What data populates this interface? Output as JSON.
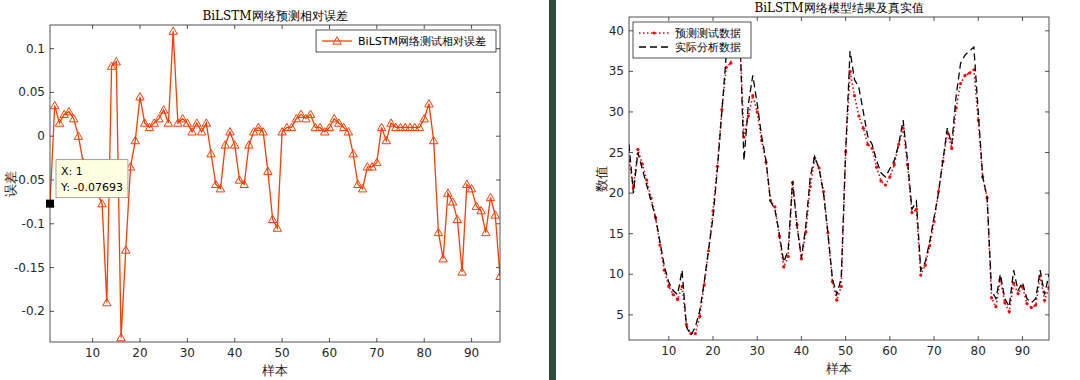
{
  "chart_data": [
    {
      "type": "line",
      "title": "BiLSTM网络预测相对误差",
      "x_label": "样本",
      "y_label": "误差",
      "x": [
        1,
        2,
        3,
        4,
        5,
        6,
        7,
        8,
        9,
        10,
        11,
        12,
        13,
        14,
        15,
        16,
        17,
        18,
        19,
        20,
        21,
        22,
        23,
        24,
        25,
        26,
        27,
        28,
        29,
        30,
        31,
        32,
        33,
        34,
        35,
        36,
        37,
        38,
        39,
        40,
        41,
        42,
        43,
        44,
        45,
        46,
        47,
        48,
        49,
        50,
        51,
        52,
        53,
        54,
        55,
        56,
        57,
        58,
        59,
        60,
        61,
        62,
        63,
        64,
        65,
        66,
        67,
        68,
        69,
        70,
        71,
        72,
        73,
        74,
        75,
        76,
        77,
        78,
        79,
        80,
        81,
        82,
        83,
        84,
        85,
        86,
        87,
        88,
        89,
        90,
        91,
        92,
        93,
        94,
        95,
        96
      ],
      "series": [
        {
          "name": "BiLSTM网络测试相对误差",
          "color": "#ff3c00",
          "marker": "triangle",
          "line_style": "solid",
          "values": [
            -0.077,
            0.035,
            0.015,
            0.025,
            0.028,
            0.02,
            0.0,
            -0.03,
            -0.05,
            -0.06,
            -0.065,
            -0.077,
            -0.19,
            0.08,
            0.085,
            -0.23,
            -0.13,
            -0.035,
            -0.005,
            0.045,
            0.015,
            0.01,
            0.015,
            0.02,
            0.03,
            0.015,
            0.12,
            0.015,
            0.02,
            0.015,
            0.005,
            0.015,
            0.005,
            0.015,
            -0.02,
            -0.055,
            -0.06,
            -0.01,
            0.005,
            -0.01,
            -0.05,
            -0.055,
            -0.01,
            0.005,
            0.01,
            0.005,
            -0.04,
            -0.095,
            -0.105,
            0.005,
            0.01,
            0.01,
            0.02,
            0.025,
            0.02,
            0.025,
            0.01,
            0.01,
            0.005,
            0.01,
            0.02,
            0.015,
            0.01,
            0.005,
            -0.02,
            -0.055,
            -0.06,
            -0.035,
            -0.035,
            -0.03,
            0.01,
            -0.005,
            0.015,
            0.01,
            0.01,
            0.01,
            0.01,
            0.01,
            0.01,
            0.02,
            0.037,
            -0.005,
            -0.11,
            -0.14,
            -0.065,
            -0.075,
            -0.095,
            -0.155,
            -0.055,
            -0.06,
            -0.08,
            -0.085,
            -0.11,
            -0.07,
            -0.09,
            -0.16
          ]
        }
      ],
      "xlim": [
        1,
        96
      ],
      "xticks": [
        10,
        20,
        30,
        40,
        50,
        60,
        70,
        80,
        90
      ],
      "ylim": [
        -0.235,
        0.127
      ],
      "yticks": [
        -0.2,
        -0.15,
        -0.1,
        -0.05,
        0,
        0.05,
        0.1
      ],
      "legend": "upper right",
      "annotations": [
        "X: 1",
        "Y: -0.07693"
      ]
    },
    {
      "type": "line",
      "title": "BiLSTM网络模型结果及真实值",
      "x_label": "样本",
      "y_label": "数值",
      "x": [
        1,
        2,
        3,
        4,
        5,
        6,
        7,
        8,
        9,
        10,
        11,
        12,
        13,
        14,
        15,
        16,
        17,
        18,
        19,
        20,
        21,
        22,
        23,
        24,
        25,
        26,
        27,
        28,
        29,
        30,
        31,
        32,
        33,
        34,
        35,
        36,
        37,
        38,
        39,
        40,
        41,
        42,
        43,
        44,
        45,
        46,
        47,
        48,
        49,
        50,
        51,
        52,
        53,
        54,
        55,
        56,
        57,
        58,
        59,
        60,
        61,
        62,
        63,
        64,
        65,
        66,
        67,
        68,
        69,
        70,
        71,
        72,
        73,
        74,
        75,
        76,
        77,
        78,
        79,
        80,
        81,
        82,
        83,
        84,
        85,
        86,
        87,
        88,
        89,
        90,
        91,
        92,
        93,
        94,
        95,
        96
      ],
      "series": [
        {
          "name": "预测测试数据",
          "color": "#ff0000",
          "marker": "point",
          "line_style": "dotted",
          "values": [
            24.0,
            20.7,
            25.4,
            23.6,
            21.6,
            19.4,
            17.0,
            13.6,
            10.5,
            8.5,
            7.5,
            6.9,
            8.5,
            3.8,
            2.7,
            2.7,
            4.8,
            8.7,
            12.9,
            17.8,
            23.3,
            30.3,
            35.5,
            36.0,
            40.5,
            40.2,
            26.9,
            29.5,
            32.0,
            30.0,
            26.5,
            23.8,
            19.1,
            18.3,
            14.7,
            10.9,
            12.2,
            21.3,
            16.1,
            11.9,
            15.2,
            20.8,
            24.3,
            23.1,
            20.2,
            15.1,
            9.1,
            6.8,
            8.5,
            25.1,
            35.0,
            32.0,
            29.5,
            28.0,
            26.0,
            25.5,
            23.2,
            21.5,
            21.0,
            22.0,
            23.5,
            26.0,
            28.0,
            23.5,
            17.6,
            18.0,
            9.9,
            11.1,
            13.5,
            16.5,
            20.2,
            23.9,
            27.5,
            25.5,
            30.5,
            33.5,
            34.5,
            34.8,
            35.2,
            29.0,
            22.0,
            19.4,
            7.1,
            6.0,
            9.4,
            6.5,
            5.4,
            8.9,
            7.6,
            8.5,
            6.4,
            5.9,
            6.2,
            9.8,
            6.8,
            8.4
          ]
        },
        {
          "name": "实际分析数据",
          "color": "#000000",
          "marker": "none",
          "line_style": "dashed",
          "values": [
            26,
            20,
            25,
            23,
            21,
            19,
            17,
            14,
            11,
            9,
            8,
            7.5,
            10.5,
            3.5,
            2.5,
            3.5,
            5.5,
            9,
            13,
            17,
            23,
            30,
            37,
            38,
            41,
            41,
            24,
            31,
            34.5,
            31,
            27,
            24,
            19,
            18,
            15,
            11.5,
            13,
            21.5,
            16,
            12,
            16,
            22,
            24.5,
            23,
            20,
            15,
            9.5,
            7.5,
            9.5,
            25,
            37.5,
            34,
            33,
            30,
            27,
            26,
            24,
            22.5,
            22,
            23,
            24,
            26,
            29,
            24,
            18,
            19,
            10.5,
            11.5,
            14,
            17,
            20,
            24,
            28,
            26,
            32,
            36,
            37,
            37.5,
            38,
            30,
            22,
            19.5,
            8,
            7,
            10,
            7,
            6,
            10.5,
            8,
            9,
            7,
            6.5,
            7,
            10.5,
            7.5,
            10
          ]
        }
      ],
      "xlim": [
        1,
        96
      ],
      "xticks": [
        10,
        20,
        30,
        40,
        50,
        60,
        70,
        80,
        90
      ],
      "ylim": [
        1.9,
        41.7
      ],
      "yticks": [
        5,
        10,
        15,
        20,
        25,
        30,
        35,
        40
      ],
      "legend": "upper left"
    }
  ]
}
